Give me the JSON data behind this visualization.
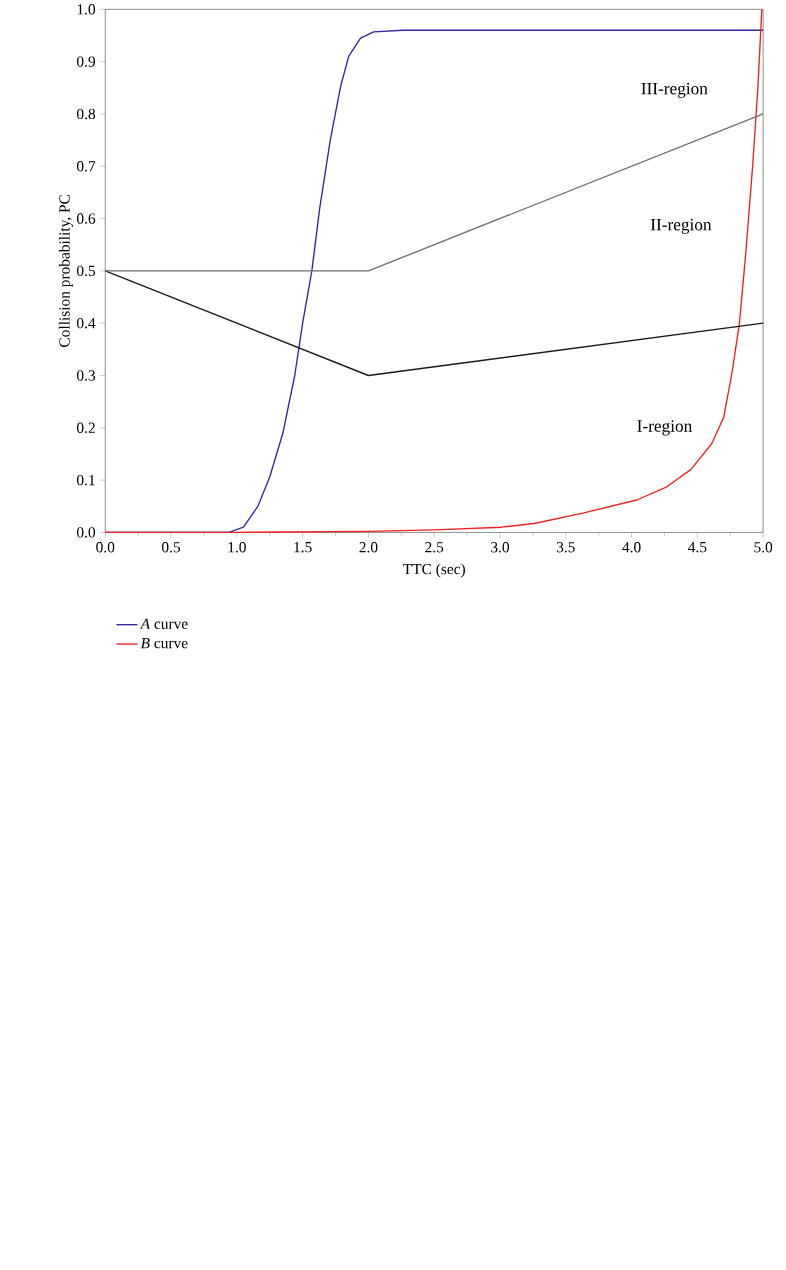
{
  "chart_data": {
    "type": "line",
    "xlabel": "TTC (sec)",
    "ylabel": "Collision probability, PC",
    "xlim": [
      0,
      5
    ],
    "ylim": [
      0,
      1
    ],
    "xticks": [
      {
        "value": 0,
        "label": "0.0"
      },
      0.5,
      {
        "value": 1,
        "label": "1.0"
      },
      1.5,
      {
        "value": 2,
        "label": "2.0"
      },
      2.5,
      {
        "value": 3,
        "label": "3.0"
      },
      3.5,
      {
        "value": 4,
        "label": "4.0"
      },
      4.5,
      {
        "value": 5,
        "label": "5.0"
      }
    ],
    "yticks": [
      {
        "value": 0,
        "label": "0.0"
      },
      0.1,
      0.2,
      0.3,
      0.4,
      0.5,
      0.6,
      0.7,
      0.8,
      0.9,
      {
        "value": 1,
        "label": "1.0"
      }
    ],
    "grid": false,
    "legend": "bottom left",
    "marker": "none",
    "line_style": "solid",
    "series": [
      {
        "name": "*A* curve",
        "color": "#2e2a9e",
        "x": [
          0,
          0.5,
          0.94,
          1.05,
          1.16,
          1.25,
          1.35,
          1.44,
          1.5,
          1.57,
          1.63,
          1.71,
          1.79,
          1.85,
          1.94,
          2.04,
          2.26,
          5
        ],
        "values": [
          0,
          0,
          0,
          0.01,
          0.05,
          0.106,
          0.19,
          0.3,
          0.4,
          0.5,
          0.62,
          0.75,
          0.854,
          0.91,
          0.945,
          0.957,
          0.96,
          0.96
        ]
      },
      {
        "name": "*B* curve",
        "color": "#f02020",
        "x": [
          0,
          1,
          2,
          2.5,
          3.01,
          3.26,
          3.63,
          4.04,
          4.26,
          4.45,
          4.61,
          4.7,
          4.76,
          4.82,
          4.87,
          4.92,
          4.96,
          4.99
        ],
        "values": [
          0,
          0,
          0.002,
          0.005,
          0.01,
          0.017,
          0.037,
          0.062,
          0.086,
          0.12,
          0.17,
          0.22,
          0.3,
          0.4,
          0.54,
          0.7,
          0.85,
          1.0
        ]
      },
      {
        "color": "#1a1a1a",
        "x": [
          0,
          2,
          5
        ],
        "values": [
          0.5,
          0.3,
          0.4
        ]
      },
      {
        "color": "#6e6e6e",
        "x": [
          0,
          2,
          5
        ],
        "values": [
          0.5,
          0.5,
          0.8
        ]
      }
    ],
    "annotations": [
      "III-region",
      "II-region",
      "I-region"
    ]
  }
}
